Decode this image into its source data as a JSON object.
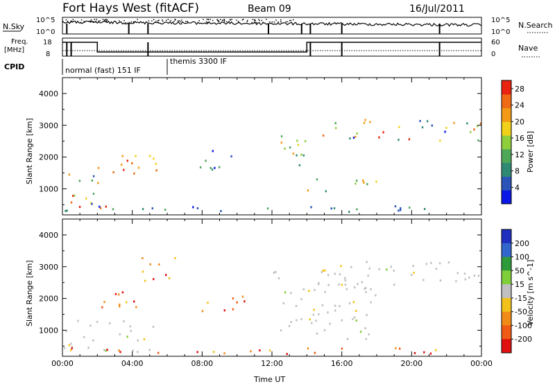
{
  "header": {
    "station": "Fort Hays West (fitACF)",
    "beam": "Beam 09",
    "date": "16/Jul/2011"
  },
  "strip_labels": {
    "nsky": "N.Sky",
    "nsky_top": "10^5",
    "nsky_bottom": "10^0",
    "nsearch": "N.Search",
    "nsearch_top": "10^5",
    "nsearch_bottom": "10^0",
    "freq": "Freq.",
    "freq_unit": "[MHz]",
    "freq_top": "18",
    "freq_bottom": "8",
    "nave": "Nave",
    "nave_top": "60",
    "nave_bottom": "0",
    "cpid": "CPID",
    "cpid_mode1": "normal (fast) 151 IF",
    "cpid_mode2": "themis 3300 IF"
  },
  "colors": {
    "power_scale": [
      "#0b17e6",
      "#2b54b8",
      "#2f8a74",
      "#4fa85a",
      "#8fcf3c",
      "#f1d11a",
      "#f39a16",
      "#ef6a13",
      "#e8230f"
    ],
    "velocity_scale": [
      "#1f2fbf",
      "#3366cc",
      "#2e9a3a",
      "#7fcf3a",
      "#c0c0c0",
      "#f2c21a",
      "#f28c18",
      "#ef5a14",
      "#e01010"
    ]
  },
  "chart_data": [
    {
      "type": "heatmap",
      "name": "power",
      "xlabel": "",
      "ylabel": "Slant Range [km]",
      "x_range": [
        "00:00",
        "24:00"
      ],
      "ylim": [
        180,
        4500
      ],
      "yticks": [
        "1000",
        "2000",
        "3000",
        "4000"
      ],
      "colorbar": {
        "label": "Power [dB]",
        "ticks": [
          "4",
          "8",
          "12",
          "16",
          "20",
          "24",
          "28"
        ],
        "range": [
          0,
          30
        ]
      },
      "regions": [
        {
          "t0": 0.0,
          "t1": 2.0,
          "r0": 300,
          "r1": 1600,
          "level": "mixed"
        },
        {
          "t0": 0.5,
          "t1": 2.5,
          "r0": 300,
          "r1": 600,
          "level": "high"
        },
        {
          "t0": 2.0,
          "t1": 5.5,
          "r0": 1400,
          "r1": 2300,
          "level": "high"
        },
        {
          "t0": 0.0,
          "t1": 24.0,
          "r0": 250,
          "r1": 450,
          "level": "low"
        },
        {
          "t0": 7.5,
          "t1": 10.5,
          "r0": 1600,
          "r1": 2200,
          "level": "low"
        },
        {
          "t0": 12.0,
          "t1": 14.0,
          "r0": 1700,
          "r1": 3000,
          "level": "mid"
        },
        {
          "t0": 14.5,
          "t1": 24.0,
          "r0": 2500,
          "r1": 3200,
          "level": "mixed"
        },
        {
          "t0": 14.0,
          "t1": 18.0,
          "r0": 900,
          "r1": 1400,
          "level": "mid"
        }
      ]
    },
    {
      "type": "heatmap",
      "name": "velocity",
      "xlabel": "Time UT",
      "ylabel": "Slant Range [km]",
      "x_range": [
        "00:00",
        "24:00"
      ],
      "xticks": [
        "00:00",
        "04:00",
        "08:00",
        "12:00",
        "16:00",
        "20:00",
        "00:00"
      ],
      "ylim": [
        180,
        4500
      ],
      "yticks": [
        "1000",
        "2000",
        "3000",
        "4000"
      ],
      "colorbar": {
        "label": "Velocity [m s^-1]",
        "ticks": [
          "200",
          "100",
          "50",
          "15",
          "-15",
          "-50",
          "-100",
          "-200"
        ],
        "range": [
          -250,
          250
        ]
      },
      "regions": [
        {
          "t0": 0.0,
          "t1": 5.5,
          "r0": 300,
          "r1": 1300,
          "level": "ground"
        },
        {
          "t0": 2.0,
          "t1": 4.5,
          "r0": 1400,
          "r1": 2300,
          "level": "negative"
        },
        {
          "t0": 4.0,
          "t1": 6.5,
          "r0": 2500,
          "r1": 3300,
          "level": "negative"
        },
        {
          "t0": 7.5,
          "t1": 10.5,
          "r0": 1600,
          "r1": 2200,
          "level": "negative"
        },
        {
          "t0": 0.0,
          "t1": 24.0,
          "r0": 250,
          "r1": 450,
          "level": "negative"
        },
        {
          "t0": 12.0,
          "t1": 18.0,
          "r0": 700,
          "r1": 2900,
          "level": "ground"
        },
        {
          "t0": 14.5,
          "t1": 24.0,
          "r0": 2400,
          "r1": 3200,
          "level": "ground"
        }
      ]
    }
  ]
}
